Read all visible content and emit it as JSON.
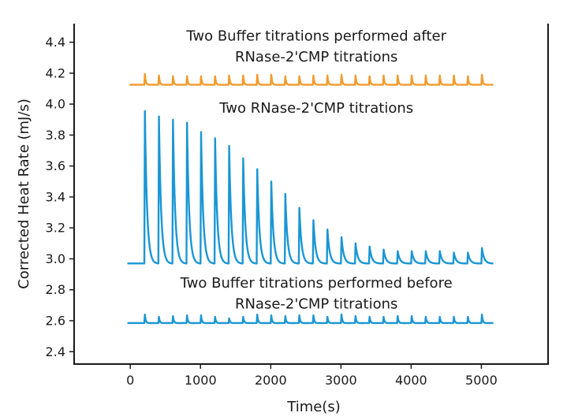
{
  "chart_data": {
    "type": "line",
    "title": "",
    "xlabel": "Time(s)",
    "ylabel": "Corrected Heat Rate (mJ/s)",
    "xlim": [
      -800,
      5950
    ],
    "ylim": [
      2.32,
      4.52
    ],
    "x_ticks": [
      0,
      1000,
      2000,
      3000,
      4000,
      5000
    ],
    "y_ticks": [
      2.4,
      2.6,
      2.8,
      3.0,
      3.2,
      3.4,
      3.6,
      3.8,
      4.0,
      4.2,
      4.4
    ],
    "x_tick_labels": [
      "0",
      "1000",
      "2000",
      "3000",
      "4000",
      "5000"
    ],
    "y_tick_labels": [
      "2.4",
      "2.6",
      "2.8",
      "3.0",
      "3.2",
      "3.4",
      "3.6",
      "3.8",
      "4.0",
      "4.2",
      "4.4"
    ],
    "series": [
      {
        "name": "Buffer titrations after RNase-2'CMP titrations",
        "color": "#F39A2B",
        "x_start": 0,
        "x_end": 5160,
        "baseline": 4.125,
        "injection_times": [
          200,
          400,
          600,
          800,
          1000,
          1200,
          1400,
          1600,
          1800,
          2000,
          2200,
          2400,
          2600,
          2800,
          3000,
          3200,
          3400,
          3600,
          3800,
          4000,
          4200,
          4400,
          4600,
          4800,
          5000
        ],
        "peak_values": [
          4.195,
          4.185,
          4.18,
          4.18,
          4.18,
          4.18,
          4.185,
          4.185,
          4.19,
          4.19,
          4.18,
          4.18,
          4.185,
          4.185,
          4.19,
          4.185,
          4.18,
          4.185,
          4.185,
          4.185,
          4.185,
          4.185,
          4.185,
          4.18,
          4.19
        ]
      },
      {
        "name": "Two RNase-2'CMP titrations",
        "color": "#1A96D4",
        "x_start": -30,
        "x_end": 5160,
        "baseline": 2.97,
        "injection_times": [
          200,
          400,
          600,
          800,
          1000,
          1200,
          1400,
          1600,
          1800,
          2000,
          2200,
          2400,
          2600,
          2800,
          3000,
          3200,
          3400,
          3600,
          3800,
          4000,
          4200,
          4400,
          4600,
          4800,
          5000
        ],
        "peak_values": [
          3.955,
          3.92,
          3.9,
          3.88,
          3.82,
          3.78,
          3.73,
          3.65,
          3.58,
          3.5,
          3.42,
          3.33,
          3.25,
          3.19,
          3.14,
          3.1,
          3.08,
          3.06,
          3.05,
          3.05,
          3.05,
          3.05,
          3.04,
          3.04,
          3.07
        ]
      },
      {
        "name": "Buffer titrations before RNase-2'CMP titrations",
        "color": "#1A96D4",
        "x_start": -30,
        "x_end": 5160,
        "baseline": 2.585,
        "injection_times": [
          200,
          400,
          600,
          800,
          1000,
          1200,
          1400,
          1600,
          1800,
          2000,
          2200,
          2400,
          2600,
          2800,
          3000,
          3200,
          3400,
          3600,
          3800,
          4000,
          4200,
          4400,
          4600,
          4800,
          5000
        ],
        "peak_values": [
          2.64,
          2.625,
          2.63,
          2.635,
          2.635,
          2.625,
          2.615,
          2.625,
          2.64,
          2.635,
          2.63,
          2.635,
          2.635,
          2.625,
          2.64,
          2.63,
          2.625,
          2.625,
          2.63,
          2.63,
          2.625,
          2.625,
          2.625,
          2.625,
          2.64
        ]
      }
    ],
    "annotations": [
      {
        "id": "after_line1",
        "text": "Two Buffer titrations performed after",
        "x": 2650,
        "y": 4.44
      },
      {
        "id": "after_line2",
        "text": "RNase-2'CMP titrations",
        "x": 2650,
        "y": 4.305
      },
      {
        "id": "rnase",
        "text": "Two RNase-2'CMP titrations",
        "x": 2650,
        "y": 3.975
      },
      {
        "id": "before_line1",
        "text": "Two Buffer titrations performed before",
        "x": 2650,
        "y": 2.845
      },
      {
        "id": "before_line2",
        "text": "RNase-2'CMP titrations",
        "x": 2650,
        "y": 2.71
      }
    ],
    "grid": false,
    "legend": "none"
  }
}
